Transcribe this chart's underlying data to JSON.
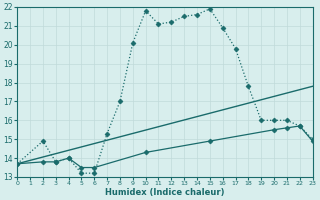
{
  "xlabel": "Humidex (Indice chaleur)",
  "xlim": [
    0,
    23
  ],
  "ylim": [
    13,
    22
  ],
  "xticks": [
    0,
    1,
    2,
    3,
    4,
    5,
    6,
    7,
    8,
    9,
    10,
    11,
    12,
    13,
    14,
    15,
    16,
    17,
    18,
    19,
    20,
    21,
    22,
    23
  ],
  "yticks": [
    13,
    14,
    15,
    16,
    17,
    18,
    19,
    20,
    21,
    22
  ],
  "bg_color": "#d8eeed",
  "line_color": "#1a6b6b",
  "grid_color": "#c0dada",
  "series": [
    {
      "x": [
        0,
        2,
        3,
        4,
        5,
        6,
        7,
        8,
        9,
        10,
        11,
        12,
        13,
        14,
        15,
        16,
        17,
        18,
        19,
        20,
        21,
        22,
        23
      ],
      "y": [
        13.7,
        14.9,
        13.8,
        14.0,
        13.2,
        13.2,
        15.3,
        17.0,
        20.1,
        21.8,
        21.1,
        21.2,
        21.5,
        21.6,
        21.9,
        20.9,
        19.8,
        17.8,
        16.0,
        16.0,
        16.0,
        15.7,
        15.0
      ],
      "marker": "D",
      "markersize": 2.5,
      "linewidth": 0.9,
      "linestyle": ":"
    },
    {
      "x": [
        0,
        23
      ],
      "y": [
        13.7,
        17.8
      ],
      "marker": null,
      "markersize": 0,
      "linewidth": 1.0,
      "linestyle": "-"
    },
    {
      "x": [
        0,
        2,
        3,
        4,
        5,
        6,
        10,
        15,
        20,
        21,
        22,
        23
      ],
      "y": [
        13.7,
        13.8,
        13.8,
        14.0,
        13.5,
        13.5,
        14.3,
        14.9,
        15.5,
        15.6,
        15.7,
        14.9
      ],
      "marker": "D",
      "markersize": 2.5,
      "linewidth": 0.9,
      "linestyle": "-"
    }
  ]
}
